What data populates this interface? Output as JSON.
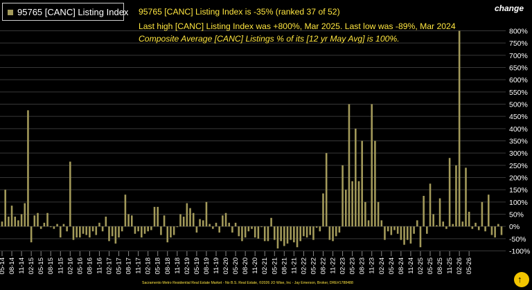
{
  "legend": {
    "label": "95765 [CANC] Listing Index"
  },
  "header": {
    "line1": "95765 [CANC] Listing Index is -35% (ranked 37 of 52)",
    "line2": "Last high [CANC] Listing Index was +800%, Mar 2025. Last low was -89%, Mar 2024",
    "line3": "Composite Average [CANC] Listings % of its [12 yr May Avg] is 100%."
  },
  "axis_title": "change",
  "footer": "Sacramento Metro Residential Real Estate Market - No B.S. Real Estate, ©2026 JO Wise, Inc - Jay Emerson, Broker, DRE#1788488",
  "logo_icon": "logo-icon",
  "colors": {
    "bar": "#a39a5a",
    "grid": "#383838",
    "text": "#ffe640",
    "axis_text": "#ffffff"
  },
  "chart_data": {
    "type": "bar",
    "ylim": [
      -100,
      850
    ],
    "grid": true,
    "legend": "top-left",
    "yticks": [
      "800%",
      "750%",
      "700%",
      "650%",
      "600%",
      "550%",
      "500%",
      "450%",
      "400%",
      "350%",
      "300%",
      "250%",
      "200%",
      "150%",
      "100%",
      "50%",
      "0%",
      "-50%",
      "-100%"
    ],
    "ytick_values": [
      800,
      750,
      700,
      650,
      600,
      550,
      500,
      450,
      400,
      350,
      300,
      250,
      200,
      150,
      100,
      50,
      0,
      -50,
      -100
    ],
    "xticks": [
      "05-14",
      "08-14",
      "11-14",
      "02-15",
      "05-15",
      "08-15",
      "11-15",
      "02-16",
      "05-16",
      "08-16",
      "11-16",
      "02-17",
      "05-17",
      "08-17",
      "11-17",
      "02-18",
      "05-18",
      "08-18",
      "11-18",
      "02-19",
      "05-19",
      "08-19",
      "11-19",
      "02-20",
      "05-20",
      "08-20",
      "11-20",
      "02-21",
      "05-21",
      "08-21",
      "11-21",
      "02-22",
      "05-22",
      "08-22",
      "11-22",
      "02-23",
      "05-23",
      "08-23",
      "11-23",
      "02-24",
      "05-24",
      "08-24",
      "11-24",
      "02-25",
      "05-25",
      "08-25",
      "11-25",
      "02-26",
      "05-26"
    ],
    "series": [
      {
        "values": [
          20,
          150,
          40,
          85,
          40,
          25,
          50,
          95,
          475,
          -65,
          45,
          55,
          -10,
          15,
          55,
          0,
          -10,
          10,
          -45,
          10,
          -20,
          265,
          -55,
          -45,
          -45,
          -30,
          -35,
          -45,
          -20,
          -35,
          15,
          -20,
          40,
          -60,
          -40,
          -70,
          -45,
          -20,
          130,
          50,
          45,
          -30,
          -20,
          -45,
          -30,
          -20,
          -15,
          80,
          80,
          -35,
          45,
          -65,
          -45,
          -35,
          0,
          50,
          40,
          95,
          75,
          55,
          -25,
          30,
          25,
          100,
          10,
          -10,
          15,
          -25,
          45,
          55,
          15,
          -25,
          15,
          -40,
          -60,
          -45,
          -20,
          -10,
          -45,
          -50,
          0,
          -60,
          -60,
          35,
          -55,
          -90,
          -60,
          -80,
          -70,
          -55,
          -65,
          -85,
          -60,
          -40,
          -45,
          -35,
          -55,
          -5,
          -20,
          135,
          300,
          -55,
          -60,
          -40,
          -25,
          250,
          150,
          500,
          185,
          400,
          185,
          350,
          100,
          25,
          500,
          350,
          100,
          25,
          -55,
          -20,
          -35,
          -15,
          -30,
          -55,
          -75,
          -55,
          -70,
          -30,
          25,
          -85,
          125,
          -30,
          175,
          50,
          5,
          115,
          20,
          -10,
          280,
          10,
          250,
          800,
          20,
          240,
          60,
          -10,
          15,
          -15,
          100,
          -20,
          130,
          -35,
          -45,
          10,
          -35
        ]
      }
    ]
  }
}
